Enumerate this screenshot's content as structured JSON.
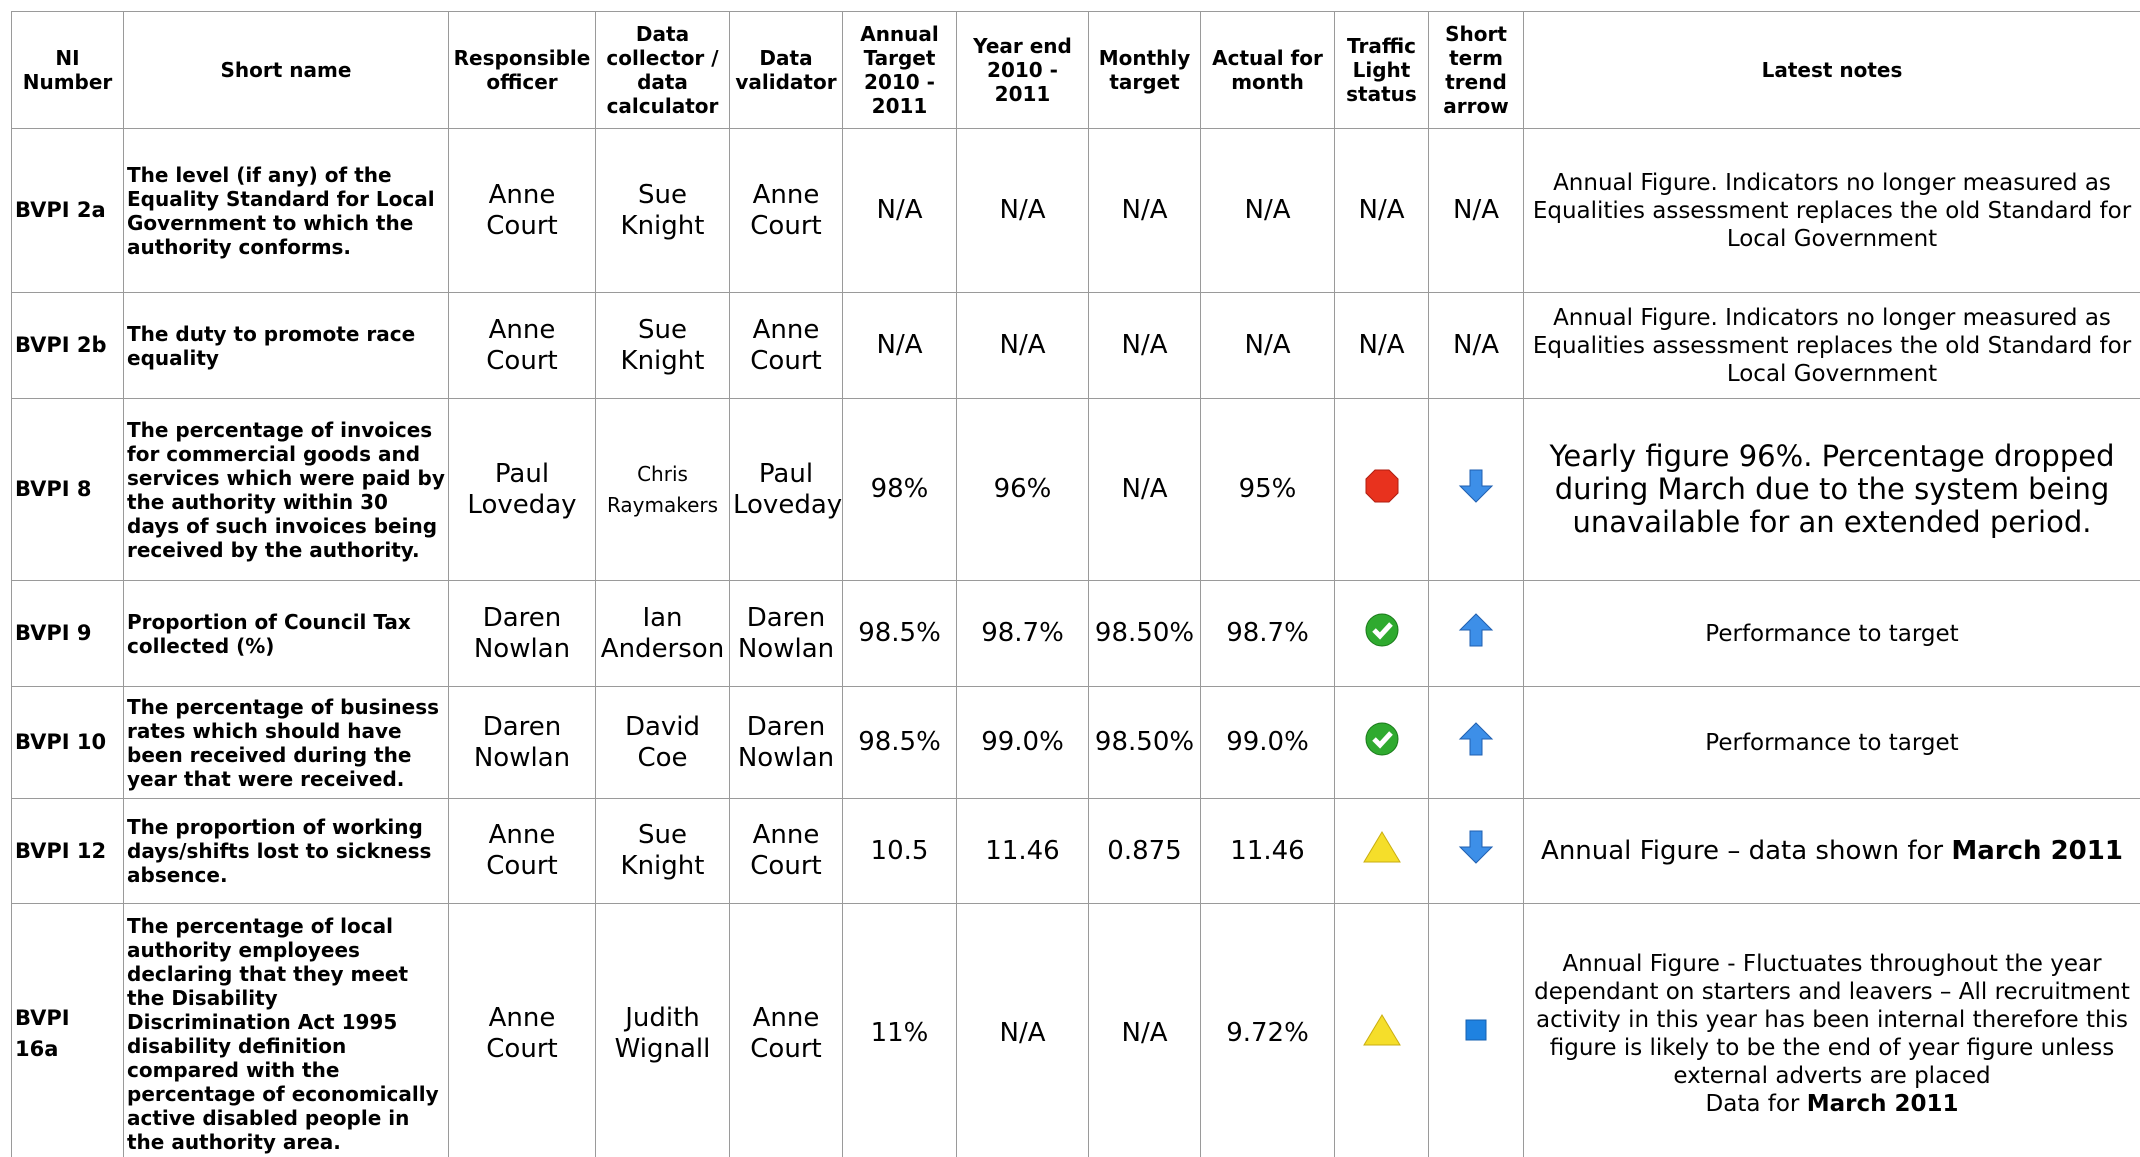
{
  "table": {
    "headers": [
      "NI Number",
      "Short name",
      "Responsible officer",
      "Data collector / data calculator",
      "Data validator",
      "Annual Target 2010 - 2011",
      "Year end 2010 - 2011",
      "Monthly target",
      "Actual for month",
      "Traffic Light status",
      "Short term trend arrow",
      "Latest notes"
    ],
    "rows": [
      {
        "ni": "BVPI 2a",
        "name": "The level (if any) of the Equality Standard for Local Government to which the authority conforms.",
        "officer": "Anne Court",
        "collector": "Sue Knight",
        "validator": "Anne Court",
        "annual_target": "N/A",
        "year_end": "N/A",
        "monthly_target": "N/A",
        "actual": "N/A",
        "traffic": "N/A",
        "trend": "N/A",
        "notes": [
          "Annual Figure. Indicators no longer measured as Equalities assessment replaces the old Standard for Local Government"
        ]
      },
      {
        "ni": "BVPI 2b",
        "name": "The duty to promote race equality",
        "officer": "Anne Court",
        "collector": "Sue Knight",
        "validator": "Anne Court",
        "annual_target": "N/A",
        "year_end": "N/A",
        "monthly_target": "N/A",
        "actual": "N/A",
        "traffic": "N/A",
        "trend": "N/A",
        "notes": [
          "Annual Figure. Indicators no longer measured as Equalities assessment replaces the old Standard for Local Government"
        ]
      },
      {
        "ni": "BVPI 8",
        "name": "The percentage of invoices for commercial goods and services which were paid by the authority within 30 days of such invoices being received by the authority.",
        "officer": "Paul Loveday",
        "collector": "Chris Raymakers",
        "validator": "Paul Loveday",
        "annual_target": "98%",
        "year_end": "96%",
        "monthly_target": "N/A",
        "actual": "95%",
        "notes": [
          "Yearly figure 96%. Percentage dropped during March due to the system being unavailable for an extended period."
        ]
      },
      {
        "ni": "BVPI 9",
        "name": "Proportion of Council Tax collected (%)",
        "officer": "Daren Nowlan",
        "collector": "Ian Anderson",
        "validator": "Daren Nowlan",
        "annual_target": "98.5%",
        "year_end": "98.7%",
        "monthly_target": "98.50%",
        "actual": "98.7%",
        "notes": [
          "Performance to target"
        ]
      },
      {
        "ni": "BVPI 10",
        "name": "The percentage of business rates which should have been received during the year that were received.",
        "officer": "Daren Nowlan",
        "collector": "David Coe",
        "validator": "Daren Nowlan",
        "annual_target": "98.5%",
        "year_end": "99.0%",
        "monthly_target": "98.50%",
        "actual": "99.0%",
        "notes": [
          "Performance to target"
        ]
      },
      {
        "ni": "BVPI 12",
        "name": "The proportion of working days/shifts lost to sickness absence.",
        "officer": "Anne Court",
        "collector": "Sue Knight",
        "validator": "Anne Court",
        "annual_target": "10.5",
        "year_end": "11.46",
        "monthly_target": "0.875",
        "actual": "11.46",
        "notes": [
          "Annual Figure – data shown for ",
          "March 2011"
        ]
      },
      {
        "ni": "BVPI 16a",
        "name": "The percentage of local authority employees declaring that they meet the Disability Discrimination Act 1995 disability definition compared with the percentage of economically active disabled people in the authority area.",
        "officer": "Anne Court",
        "collector": "Judith Wignall",
        "validator": "Anne Court",
        "annual_target": "11%",
        "year_end": "N/A",
        "monthly_target": "N/A",
        "actual": "9.72%",
        "notes": [
          "Annual Figure - Fluctuates throughout the year dependant on starters and leavers – All recruitment activity in this year has been internal therefore this figure is likely to be the end of year figure unless external adverts are placed",
          "Data for ",
          "March 2011"
        ]
      }
    ]
  }
}
